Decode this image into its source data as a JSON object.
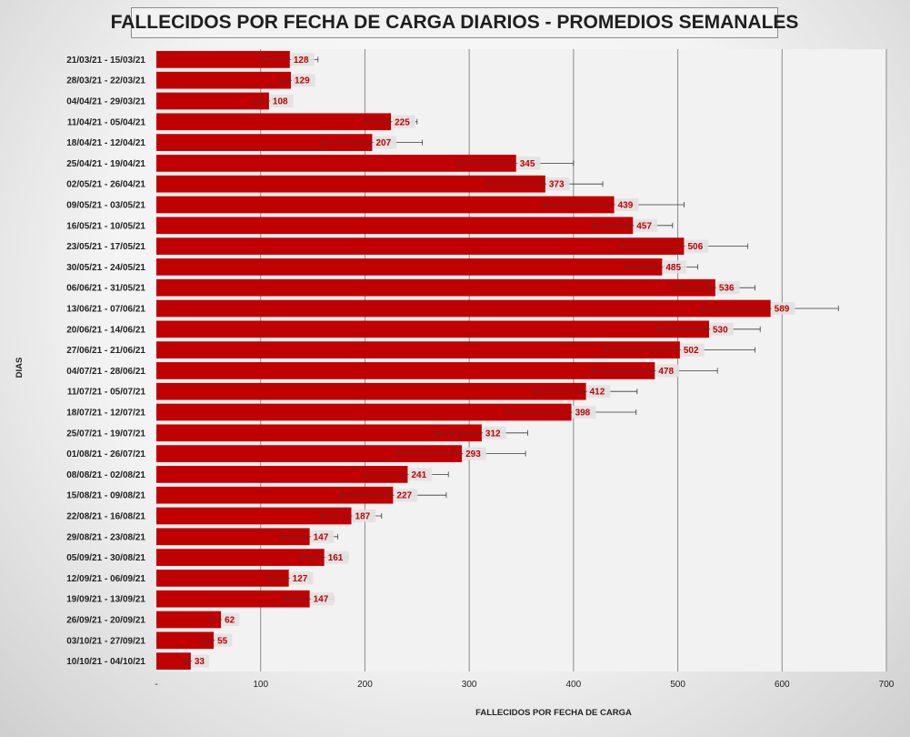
{
  "chart_data": {
    "type": "bar",
    "orientation": "horizontal",
    "title": "FALLECIDOS POR FECHA DE CARGA DIARIOS - PROMEDIOS SEMANALES",
    "xlabel": "FALLECIDOS POR FECHA DE CARGA",
    "ylabel": "DIAS",
    "xlim": [
      0,
      700
    ],
    "x_ticks": [
      {
        "value": 0,
        "label": "-"
      },
      {
        "value": 100,
        "label": "100"
      },
      {
        "value": 200,
        "label": "200"
      },
      {
        "value": 300,
        "label": "300"
      },
      {
        "value": 400,
        "label": "400"
      },
      {
        "value": 500,
        "label": "500"
      },
      {
        "value": 600,
        "label": "600"
      },
      {
        "value": 700,
        "label": "700"
      }
    ],
    "grid": true,
    "bar_color": "#c00000",
    "label_color": "#c00000",
    "categories": [
      "21/03/21 - 15/03/21",
      "28/03/21 - 22/03/21",
      "04/04/21 - 29/03/21",
      "11/04/21 - 05/04/21",
      "18/04/21 - 12/04/21",
      "25/04/21 - 19/04/21",
      "02/05/21 - 26/04/21",
      "09/05/21 - 03/05/21",
      "16/05/21 - 10/05/21",
      "23/05/21 - 17/05/21",
      "30/05/21 - 24/05/21",
      "06/06/21 - 31/05/21",
      "13/06/21 - 07/06/21",
      "20/06/21 - 14/06/21",
      "27/06/21 - 21/06/21",
      "04/07/21 - 28/06/21",
      "11/07/21 - 05/07/21",
      "18/07/21 - 12/07/21",
      "25/07/21 - 19/07/21",
      "01/08/21 - 26/07/21",
      "08/08/21 - 02/08/21",
      "15/08/21 - 09/08/21",
      "22/08/21 - 16/08/21",
      "29/08/21 - 23/08/21",
      "05/09/21 - 30/08/21",
      "12/09/21 - 06/09/21",
      "19/09/21 - 13/09/21",
      "26/09/21 - 20/09/21",
      "03/10/21 - 27/09/21",
      "10/10/21 - 04/10/21"
    ],
    "values": [
      128,
      129,
      108,
      225,
      207,
      345,
      373,
      439,
      457,
      506,
      485,
      536,
      589,
      530,
      502,
      478,
      412,
      398,
      312,
      293,
      241,
      227,
      187,
      147,
      161,
      127,
      147,
      62,
      55,
      33
    ],
    "error_bars": [
      [
        101,
        155
      ],
      [
        119,
        139
      ],
      [
        95,
        121
      ],
      [
        200,
        250
      ],
      [
        159,
        255
      ],
      [
        290,
        400
      ],
      [
        318,
        428
      ],
      [
        372,
        506
      ],
      [
        419,
        495
      ],
      [
        445,
        567
      ],
      [
        451,
        519
      ],
      [
        498,
        574
      ],
      [
        524,
        654
      ],
      [
        481,
        579
      ],
      [
        430,
        574
      ],
      [
        418,
        538
      ],
      [
        363,
        461
      ],
      [
        336,
        460
      ],
      [
        268,
        356
      ],
      [
        232,
        354
      ],
      [
        202,
        280
      ],
      [
        176,
        278
      ],
      [
        158,
        216
      ],
      [
        120,
        174
      ],
      [
        138,
        184
      ],
      [
        107,
        147
      ],
      [
        124,
        170
      ],
      [
        51,
        73
      ],
      [
        44,
        66
      ],
      [
        28,
        38
      ]
    ]
  }
}
